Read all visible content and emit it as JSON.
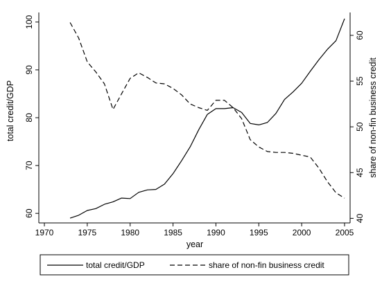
{
  "chart_data": {
    "type": "line",
    "title": "",
    "xlabel": "year",
    "ylabel_left": "total credit/GDP",
    "ylabel_right": "share of non-fin business credit",
    "xlim": [
      1970,
      2005
    ],
    "ylim_left": [
      58,
      102
    ],
    "ylim_right": [
      39.5,
      62.5
    ],
    "x_ticks": [
      1970,
      1975,
      1980,
      1985,
      1990,
      1995,
      2000,
      2005
    ],
    "y_left_ticks": [
      60,
      70,
      80,
      90,
      100
    ],
    "y_right_ticks": [
      40,
      45,
      50,
      55,
      60
    ],
    "grid": false,
    "legend_position": "bottom",
    "series": [
      {
        "name": "total credit/GDP",
        "axis": "left",
        "style": "solid",
        "x": [
          1973,
          1974,
          1975,
          1976,
          1977,
          1978,
          1979,
          1980,
          1981,
          1982,
          1983,
          1984,
          1985,
          1986,
          1987,
          1988,
          1989,
          1990,
          1991,
          1992,
          1993,
          1994,
          1995,
          1996,
          1997,
          1998,
          1999,
          2000,
          2001,
          2002,
          2003,
          2004,
          2005
        ],
        "values": [
          59.0,
          59.6,
          60.6,
          61.0,
          61.9,
          62.4,
          63.2,
          63.1,
          64.4,
          64.9,
          65.0,
          66.1,
          68.3,
          71.0,
          73.9,
          77.5,
          80.7,
          81.9,
          81.9,
          82.1,
          81.1,
          78.8,
          78.5,
          79.0,
          80.9,
          83.8,
          85.4,
          87.2,
          89.7,
          92.1,
          94.3,
          96.1,
          100.7
        ]
      },
      {
        "name": "share of non-fin business credit",
        "axis": "right",
        "style": "dashed",
        "x": [
          1973,
          1974,
          1975,
          1976,
          1977,
          1978,
          1979,
          1980,
          1981,
          1982,
          1983,
          1984,
          1985,
          1986,
          1987,
          1988,
          1989,
          1990,
          1991,
          1992,
          1993,
          1994,
          1995,
          1996,
          1997,
          1998,
          1999,
          2000,
          2001,
          2002,
          2003,
          2004,
          2005
        ],
        "values": [
          61.4,
          59.7,
          57.1,
          56.0,
          54.7,
          51.9,
          53.6,
          55.3,
          55.9,
          55.4,
          54.8,
          54.7,
          54.2,
          53.5,
          52.5,
          52.1,
          51.8,
          52.9,
          52.9,
          52.1,
          50.9,
          48.6,
          47.8,
          47.3,
          47.2,
          47.2,
          47.1,
          46.9,
          46.7,
          45.5,
          44.0,
          42.8,
          42.2
        ]
      }
    ]
  }
}
